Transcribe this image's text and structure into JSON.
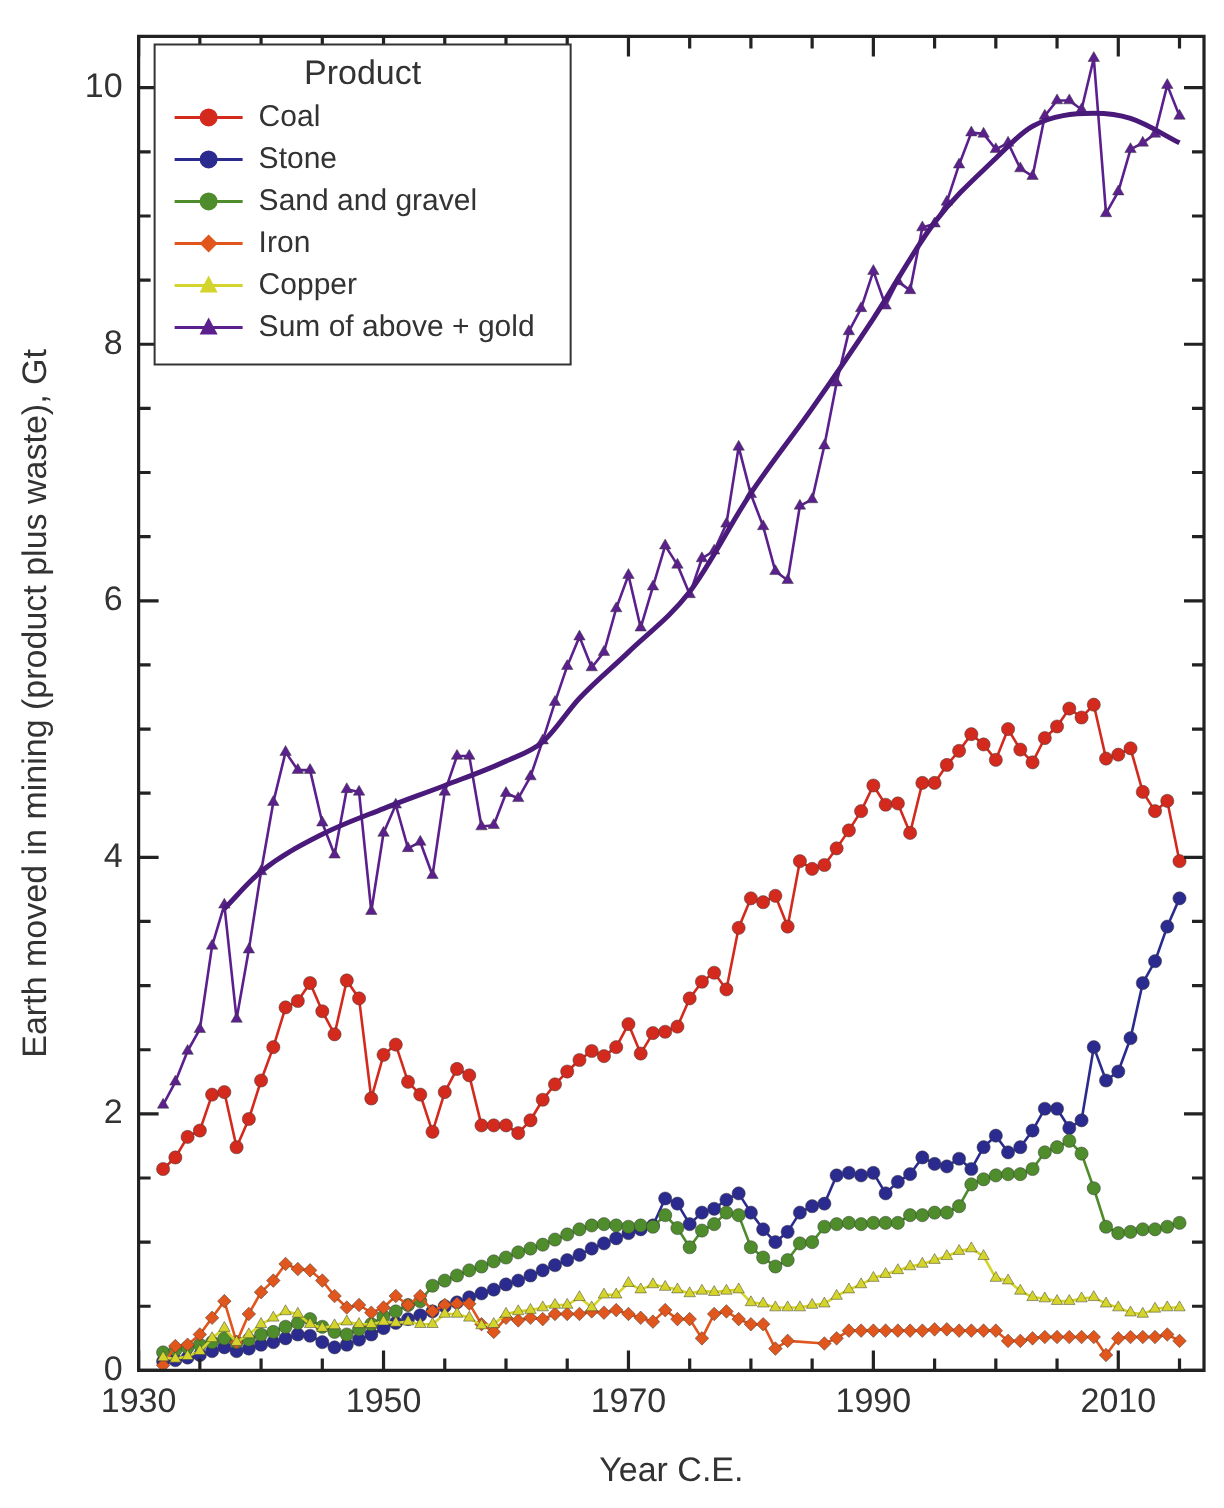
{
  "chart_data": {
    "type": "line",
    "xlabel": "Year C.E.",
    "ylabel": "Earth moved in mining (product plus waste), Gt",
    "legend_title": "Product",
    "legend": "top left",
    "xlim": [
      1930,
      2017
    ],
    "xticks": [
      1930,
      {
        "value": 1935,
        "label": null
      },
      {
        "value": 1940,
        "label": null
      },
      {
        "value": 1945,
        "label": null
      },
      1950,
      {
        "value": 1955,
        "label": null
      },
      {
        "value": 1960,
        "label": null
      },
      {
        "value": 1965,
        "label": null
      },
      1970,
      {
        "value": 1975,
        "label": null
      },
      {
        "value": 1980,
        "label": null
      },
      {
        "value": 1985,
        "label": null
      },
      1990,
      {
        "value": 1995,
        "label": null
      },
      {
        "value": 2000,
        "label": null
      },
      {
        "value": 2005,
        "label": null
      },
      2010,
      {
        "value": 2015,
        "label": null
      }
    ],
    "ylim": [
      0,
      10.4
    ],
    "yticks": [
      0,
      {
        "value": 0.5,
        "label": null
      },
      {
        "value": 1,
        "label": null
      },
      {
        "value": 1.5,
        "label": null
      },
      2,
      {
        "value": 2.5,
        "label": null
      },
      {
        "value": 3,
        "label": null
      },
      {
        "value": 3.5,
        "label": null
      },
      4,
      {
        "value": 4.5,
        "label": null
      },
      {
        "value": 5,
        "label": null
      },
      {
        "value": 5.5,
        "label": null
      },
      6,
      {
        "value": 6.5,
        "label": null
      },
      {
        "value": 7,
        "label": null
      },
      {
        "value": 7.5,
        "label": null
      },
      8,
      {
        "value": 8.5,
        "label": null
      },
      {
        "value": 9,
        "label": null
      },
      {
        "value": 9.5,
        "label": null
      },
      10
    ],
    "x": [
      1932,
      1933,
      1934,
      1935,
      1936,
      1937,
      1938,
      1939,
      1940,
      1941,
      1942,
      1943,
      1944,
      1945,
      1946,
      1947,
      1948,
      1949,
      1950,
      1951,
      1952,
      1953,
      1954,
      1955,
      1956,
      1957,
      1958,
      1959,
      1960,
      1961,
      1962,
      1963,
      1964,
      1965,
      1966,
      1967,
      1968,
      1969,
      1970,
      1971,
      1972,
      1973,
      1974,
      1975,
      1976,
      1977,
      1978,
      1979,
      1980,
      1981,
      1982,
      1983,
      1984,
      1985,
      1986,
      1987,
      1988,
      1989,
      1990,
      1991,
      1992,
      1993,
      1994,
      1995,
      1996,
      1997,
      1998,
      1999,
      2000,
      2001,
      2002,
      2003,
      2004,
      2005,
      2006,
      2007,
      2008,
      2009,
      2010,
      2011,
      2012,
      2013,
      2014,
      2015
    ],
    "series": [
      {
        "name": "Coal",
        "color": "#d42a1e",
        "marker": "circle",
        "values": [
          1.57,
          1.66,
          1.82,
          1.87,
          2.15,
          2.17,
          1.74,
          1.96,
          2.26,
          2.52,
          2.83,
          2.88,
          3.02,
          2.8,
          2.62,
          3.04,
          2.9,
          2.12,
          2.46,
          2.54,
          2.25,
          2.15,
          1.86,
          2.17,
          2.35,
          2.3,
          1.91,
          1.91,
          1.91,
          1.85,
          1.95,
          2.11,
          2.23,
          2.33,
          2.42,
          2.49,
          2.45,
          2.52,
          2.7,
          2.47,
          2.63,
          2.64,
          2.68,
          2.9,
          3.03,
          3.1,
          2.97,
          3.45,
          3.68,
          3.65,
          3.7,
          3.46,
          3.97,
          3.91,
          3.94,
          4.07,
          4.21,
          4.36,
          4.56,
          4.41,
          4.42,
          4.19,
          4.58,
          4.58,
          4.72,
          4.83,
          4.96,
          4.88,
          4.76,
          5.0,
          4.84,
          4.74,
          4.93,
          5.02,
          5.16,
          5.09,
          5.19,
          4.77,
          4.8,
          4.85,
          4.51,
          4.36,
          4.44,
          3.97
        ]
      },
      {
        "name": "Stone",
        "color": "#2b2b8f",
        "marker": "circle",
        "values": [
          0.07,
          0.08,
          0.1,
          0.12,
          0.15,
          0.18,
          0.15,
          0.17,
          0.2,
          0.22,
          0.25,
          0.28,
          0.27,
          0.22,
          0.18,
          0.2,
          0.24,
          0.28,
          0.33,
          0.37,
          0.4,
          0.43,
          0.46,
          0.5,
          0.53,
          0.57,
          0.6,
          0.63,
          0.67,
          0.7,
          0.74,
          0.78,
          0.82,
          0.86,
          0.9,
          0.95,
          0.99,
          1.03,
          1.07,
          1.1,
          1.13,
          1.34,
          1.3,
          1.14,
          1.23,
          1.26,
          1.33,
          1.38,
          1.23,
          1.1,
          1.0,
          1.08,
          1.23,
          1.28,
          1.3,
          1.52,
          1.54,
          1.52,
          1.54,
          1.38,
          1.47,
          1.53,
          1.66,
          1.61,
          1.59,
          1.65,
          1.57,
          1.74,
          1.83,
          1.7,
          1.74,
          1.87,
          2.04,
          2.04,
          1.89,
          1.95,
          2.52,
          2.26,
          2.33,
          2.59,
          3.02,
          3.19,
          3.46,
          3.68
        ]
      },
      {
        "name": "Sand and gravel",
        "color": "#4e8c2c",
        "marker": "circle",
        "values": [
          0.14,
          0.16,
          0.18,
          0.2,
          0.22,
          0.25,
          0.22,
          0.24,
          0.28,
          0.3,
          0.34,
          0.37,
          0.4,
          0.34,
          0.3,
          0.28,
          0.32,
          0.36,
          0.42,
          0.46,
          0.51,
          0.54,
          0.66,
          0.7,
          0.74,
          0.78,
          0.81,
          0.85,
          0.88,
          0.92,
          0.95,
          0.98,
          1.02,
          1.06,
          1.1,
          1.13,
          1.14,
          1.13,
          1.12,
          1.13,
          1.12,
          1.21,
          1.11,
          0.96,
          1.09,
          1.14,
          1.23,
          1.21,
          0.96,
          0.88,
          0.81,
          0.86,
          0.99,
          1.0,
          1.12,
          1.14,
          1.15,
          1.14,
          1.15,
          1.15,
          1.15,
          1.21,
          1.21,
          1.23,
          1.23,
          1.28,
          1.45,
          1.49,
          1.52,
          1.53,
          1.53,
          1.57,
          1.7,
          1.74,
          1.79,
          1.69,
          1.42,
          1.12,
          1.07,
          1.08,
          1.1,
          1.1,
          1.12,
          1.15
        ]
      },
      {
        "name": "Iron",
        "color": "#e0561c",
        "marker": "diamond",
        "values": [
          0.04,
          0.19,
          0.2,
          0.28,
          0.41,
          0.54,
          0.22,
          0.44,
          0.61,
          0.7,
          0.83,
          0.79,
          0.78,
          0.7,
          0.58,
          0.49,
          0.51,
          0.45,
          0.49,
          0.58,
          0.51,
          0.58,
          0.46,
          0.51,
          0.52,
          0.52,
          0.36,
          0.3,
          0.41,
          0.39,
          0.41,
          0.4,
          0.44,
          0.44,
          0.44,
          0.46,
          0.45,
          0.47,
          0.44,
          0.41,
          0.38,
          0.47,
          0.4,
          0.4,
          0.25,
          0.44,
          0.46,
          0.4,
          0.36,
          0.36,
          0.17,
          0.23,
          null,
          null,
          0.21,
          0.25,
          0.31,
          0.31,
          0.31,
          0.31,
          0.31,
          0.31,
          0.31,
          0.32,
          0.32,
          0.31,
          0.31,
          0.31,
          0.31,
          0.23,
          0.23,
          0.25,
          0.26,
          0.26,
          0.26,
          0.26,
          0.26,
          0.12,
          0.25,
          0.26,
          0.26,
          0.26,
          0.28,
          0.23
        ]
      },
      {
        "name": "Copper",
        "color": "#d4d42c",
        "marker": "triangle",
        "values": [
          0.1,
          0.09,
          0.11,
          0.15,
          0.25,
          0.33,
          0.22,
          0.28,
          0.36,
          0.41,
          0.46,
          0.44,
          0.36,
          0.33,
          0.35,
          0.38,
          0.36,
          0.36,
          0.38,
          0.37,
          0.38,
          0.36,
          0.36,
          0.44,
          0.44,
          0.41,
          0.35,
          0.36,
          0.44,
          0.46,
          0.47,
          0.49,
          0.51,
          0.51,
          0.57,
          0.49,
          0.59,
          0.59,
          0.68,
          0.63,
          0.67,
          0.65,
          0.63,
          0.6,
          0.62,
          0.61,
          0.62,
          0.63,
          0.53,
          0.52,
          0.49,
          0.49,
          0.49,
          0.51,
          0.52,
          0.58,
          0.63,
          0.67,
          0.72,
          0.75,
          0.78,
          0.81,
          0.83,
          0.86,
          0.89,
          0.93,
          0.95,
          0.89,
          0.72,
          0.7,
          0.62,
          0.57,
          0.56,
          0.54,
          0.54,
          0.56,
          0.57,
          0.52,
          0.49,
          0.45,
          0.44,
          0.48,
          0.49,
          0.49
        ]
      },
      {
        "name": "Sum of above + gold",
        "color": "#5b1f8e",
        "marker": "triangle",
        "values": [
          2.07,
          2.25,
          2.49,
          2.66,
          3.31,
          3.63,
          2.74,
          3.28,
          3.89,
          4.43,
          4.82,
          4.68,
          4.68,
          4.27,
          4.02,
          4.53,
          4.51,
          3.58,
          4.19,
          4.41,
          4.07,
          4.12,
          3.86,
          4.51,
          4.79,
          4.79,
          4.24,
          4.25,
          4.5,
          4.46,
          4.63,
          4.91,
          5.21,
          5.49,
          5.72,
          5.48,
          5.6,
          5.94,
          6.2,
          5.79,
          6.11,
          6.43,
          6.28,
          6.05,
          6.33,
          6.39,
          6.6,
          7.2,
          6.83,
          6.58,
          6.23,
          6.16,
          6.74,
          6.79,
          7.21,
          7.7,
          8.1,
          8.28,
          8.57,
          8.3,
          8.49,
          8.42,
          8.91,
          8.94,
          9.11,
          9.4,
          9.65,
          9.64,
          9.52,
          9.57,
          9.37,
          9.31,
          9.78,
          9.9,
          9.9,
          9.83,
          10.23,
          9.02,
          9.19,
          9.52,
          9.57,
          9.64,
          10.02,
          9.78
        ]
      },
      {
        "color": "#4a1a7a",
        "marker": "none",
        "x": [
          1937,
          1940,
          1945,
          1950,
          1955,
          1960,
          1963,
          1966,
          1970,
          1975,
          1980,
          1985,
          1990,
          1995,
          2000,
          2003,
          2008,
          2011,
          2015
        ],
        "values": [
          3.6,
          3.89,
          4.18,
          4.38,
          4.56,
          4.75,
          4.9,
          5.24,
          5.6,
          6.07,
          6.84,
          7.5,
          8.2,
          8.95,
          9.45,
          9.7,
          9.8,
          9.76,
          9.57
        ]
      }
    ]
  }
}
